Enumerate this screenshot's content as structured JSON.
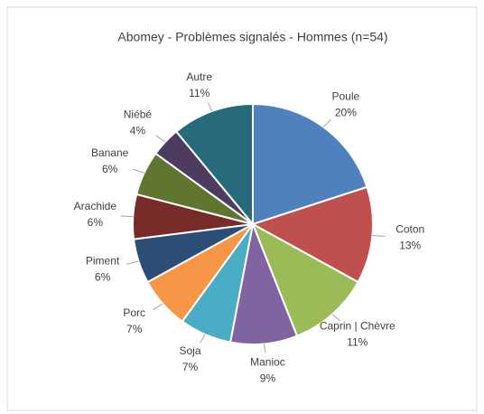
{
  "chart_data": {
    "type": "pie",
    "title": "Abomey - Problèmes signalés - Hommes (n=54)",
    "categories": [
      "Poule",
      "Coton",
      "Caprin | Chèvre",
      "Manioc",
      "Soja",
      "Porc",
      "Piment",
      "Arachide",
      "Banane",
      "Niébé",
      "Autre"
    ],
    "values": [
      20,
      13,
      11,
      9,
      7,
      7,
      6,
      6,
      6,
      4,
      11
    ],
    "value_labels": [
      "20%",
      "13%",
      "11%",
      "9%",
      "7%",
      "7%",
      "6%",
      "6%",
      "6%",
      "4%",
      "11%"
    ],
    "colors": [
      "#4f81bd",
      "#c0504d",
      "#9bbb59",
      "#8064a2",
      "#4bacc6",
      "#f79646",
      "#2c4d75",
      "#772c2a",
      "#5f7530",
      "#4d3b62",
      "#276a7c"
    ]
  }
}
